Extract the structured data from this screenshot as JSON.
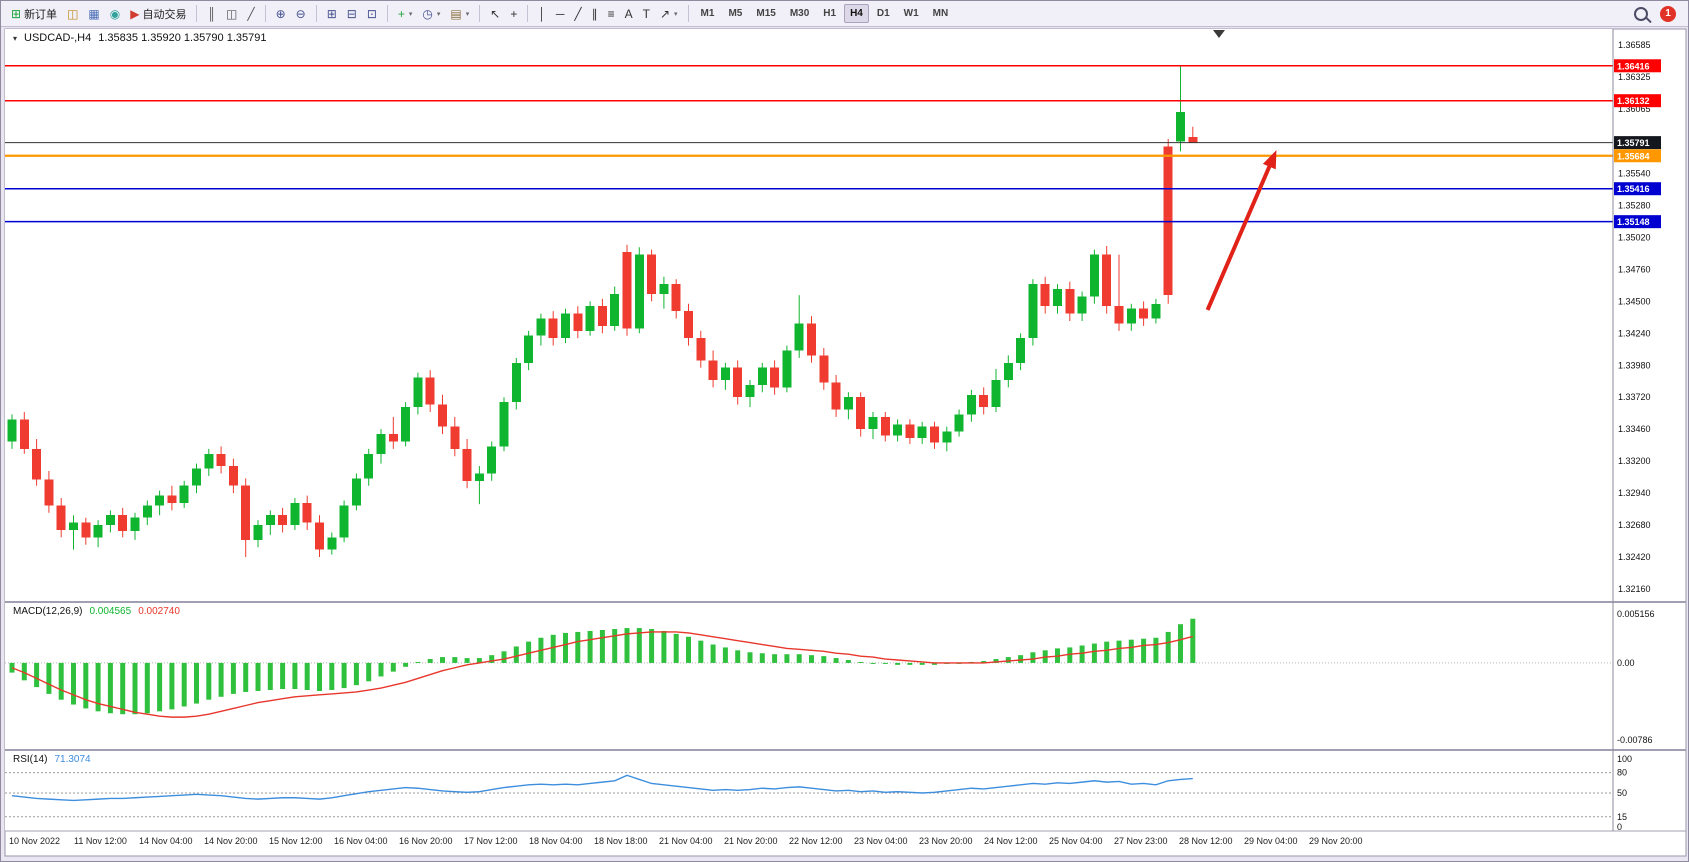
{
  "toolbar": {
    "items": [
      {
        "name": "new-order-button",
        "glyph": "⊞",
        "glyph_color": "#1fa53c",
        "label": "新订单"
      },
      {
        "name": "charts-icon-button",
        "glyph": "◫",
        "glyph_color": "#c08a1e"
      },
      {
        "name": "profiles-button",
        "glyph": "▦",
        "glyph_color": "#4a6fb5"
      },
      {
        "name": "market-watch-button",
        "glyph": "◉",
        "glyph_color": "#2fa39a"
      },
      {
        "name": "auto-trading-button",
        "glyph": "▶",
        "glyph_color": "#d23b2f",
        "label": "自动交易"
      },
      {
        "sep": true
      },
      {
        "name": "bar-chart-type-button",
        "glyph": "║",
        "glyph_color": "#555555"
      },
      {
        "name": "candlestick-type-button",
        "glyph": "◫",
        "glyph_color": "#555555"
      },
      {
        "name": "line-chart-type-button",
        "glyph": "╱",
        "glyph_color": "#555555"
      },
      {
        "sep": true
      },
      {
        "name": "zoom-in-button",
        "glyph": "⊕",
        "glyph_color": "#44518f"
      },
      {
        "name": "zoom-out-button",
        "glyph": "⊖",
        "glyph_color": "#44518f"
      },
      {
        "sep": true
      },
      {
        "name": "tile-windows-button",
        "glyph": "⊞",
        "glyph_color": "#44518f"
      },
      {
        "name": "cascade-windows-button",
        "glyph": "⊟",
        "glyph_color": "#44518f"
      },
      {
        "name": "arrange-windows-button",
        "glyph": "⊡",
        "glyph_color": "#44518f"
      },
      {
        "sep": true
      },
      {
        "name": "indicators-button",
        "glyph": "+",
        "glyph_color": "#1fa53c",
        "caret": true
      },
      {
        "name": "periods-button",
        "glyph": "◷",
        "glyph_color": "#44518f",
        "caret": true
      },
      {
        "name": "templates-button",
        "glyph": "▤",
        "glyph_color": "#8a6f3e",
        "caret": true
      },
      {
        "sep": true
      },
      {
        "name": "cursor-tool-button",
        "glyph": "↖",
        "glyph_color": "#333333"
      },
      {
        "name": "crosshair-tool-button",
        "glyph": "+",
        "glyph_color": "#333333"
      },
      {
        "sep": true
      },
      {
        "name": "vertical-line-tool-button",
        "glyph": "│",
        "glyph_color": "#333333"
      },
      {
        "name": "horizontal-line-tool-button",
        "glyph": "─",
        "glyph_color": "#333333"
      },
      {
        "name": "trendline-tool-button",
        "glyph": "╱",
        "glyph_color": "#333333"
      },
      {
        "name": "channel-tool-button",
        "glyph": "∥",
        "glyph_color": "#333333"
      },
      {
        "name": "fibonacci-tool-button",
        "glyph": "≡",
        "glyph_color": "#333333"
      },
      {
        "name": "text-tool-button",
        "glyph": "A",
        "glyph_color": "#333333"
      },
      {
        "name": "label-tool-button",
        "glyph": "T",
        "glyph_color": "#333333"
      },
      {
        "name": "arrows-tool-button",
        "glyph": "↗",
        "glyph_color": "#333333",
        "caret": true
      }
    ],
    "timeframes": [
      "M1",
      "M5",
      "M15",
      "M30",
      "H1",
      "H4",
      "D1",
      "W1",
      "MN"
    ],
    "active_timeframe": "H4",
    "notification_count": "1"
  },
  "chart_header": {
    "collapse_glyph": "▾",
    "symbol_period": "USDCAD-,H4",
    "ohlc": "1.35835 1.35920 1.35790 1.35791"
  },
  "chart_data": {
    "type": "candlestick",
    "symbol": "USDCAD-",
    "timeframe": "H4",
    "current_bar": {
      "open": 1.35835,
      "high": 1.3592,
      "low": 1.3579,
      "close": 1.35791
    },
    "colors": {
      "up": "#0FB52F",
      "down": "#EF3B30",
      "macd_hist": "#2FC13E",
      "macd_signal": "#E8372C",
      "rsi_line": "#3E8EDE",
      "current_price_line": "#333333",
      "arrow": "#E02218"
    },
    "price_axis": {
      "min": 1.3216,
      "max": 1.36585,
      "ticks": [
        "1.36585",
        "1.36325",
        "1.36065",
        "1.35540",
        "1.35280",
        "1.35020",
        "1.34760",
        "1.34500",
        "1.34240",
        "1.33980",
        "1.33720",
        "1.33460",
        "1.33200",
        "1.32940",
        "1.32680",
        "1.32420",
        "1.32160"
      ],
      "badges": [
        {
          "value": "1.36416",
          "bg": "#FF0000"
        },
        {
          "value": "1.36132",
          "bg": "#FF0000"
        },
        {
          "value": "1.35791",
          "bg": "#14181E"
        },
        {
          "value": "1.35684",
          "bg": "#FF9800"
        },
        {
          "value": "1.35416",
          "bg": "#0000D0"
        },
        {
          "value": "1.35148",
          "bg": "#0000D0"
        }
      ]
    },
    "hlines": [
      {
        "price": 1.36416,
        "color": "#FF0000",
        "width": 1.5
      },
      {
        "price": 1.36132,
        "color": "#FF0000",
        "width": 1.5
      },
      {
        "price": 1.35684,
        "color": "#FF9800",
        "width": 2.2
      },
      {
        "price": 1.35416,
        "color": "#0000D0",
        "width": 1.5
      },
      {
        "price": 1.35148,
        "color": "#0000D0",
        "width": 1.5
      }
    ],
    "current_price": {
      "value": 1.35791,
      "line_color": "#333333"
    },
    "candles": [
      [
        1.3336,
        1.3358,
        1.333,
        1.3354
      ],
      [
        1.3354,
        1.336,
        1.3326,
        1.333
      ],
      [
        1.333,
        1.3338,
        1.33,
        1.3305
      ],
      [
        1.3305,
        1.3312,
        1.3278,
        1.3284
      ],
      [
        1.3284,
        1.329,
        1.3258,
        1.3264
      ],
      [
        1.3264,
        1.3276,
        1.3248,
        1.327
      ],
      [
        1.327,
        1.3274,
        1.3252,
        1.3258
      ],
      [
        1.3258,
        1.3272,
        1.325,
        1.3268
      ],
      [
        1.3268,
        1.328,
        1.3262,
        1.3276
      ],
      [
        1.3276,
        1.3282,
        1.3258,
        1.3263
      ],
      [
        1.3263,
        1.3278,
        1.3256,
        1.3274
      ],
      [
        1.3274,
        1.3288,
        1.3268,
        1.3284
      ],
      [
        1.3284,
        1.3296,
        1.3276,
        1.3292
      ],
      [
        1.3292,
        1.33,
        1.328,
        1.3286
      ],
      [
        1.3286,
        1.3304,
        1.3282,
        1.33
      ],
      [
        1.33,
        1.3318,
        1.3294,
        1.3314
      ],
      [
        1.3314,
        1.333,
        1.3308,
        1.3326
      ],
      [
        1.3326,
        1.3332,
        1.331,
        1.3316
      ],
      [
        1.3316,
        1.3322,
        1.3294,
        1.33
      ],
      [
        1.33,
        1.3306,
        1.3242,
        1.3256
      ],
      [
        1.3256,
        1.3272,
        1.325,
        1.3268
      ],
      [
        1.3268,
        1.328,
        1.326,
        1.3276
      ],
      [
        1.3276,
        1.3282,
        1.3262,
        1.3268
      ],
      [
        1.3268,
        1.329,
        1.3264,
        1.3286
      ],
      [
        1.3286,
        1.3292,
        1.3264,
        1.327
      ],
      [
        1.327,
        1.3276,
        1.3242,
        1.3248
      ],
      [
        1.3248,
        1.3262,
        1.3244,
        1.3258
      ],
      [
        1.3258,
        1.3288,
        1.3254,
        1.3284
      ],
      [
        1.3284,
        1.331,
        1.328,
        1.3306
      ],
      [
        1.3306,
        1.333,
        1.33,
        1.3326
      ],
      [
        1.3326,
        1.3346,
        1.3318,
        1.3342
      ],
      [
        1.3342,
        1.3356,
        1.333,
        1.3336
      ],
      [
        1.3336,
        1.3368,
        1.3332,
        1.3364
      ],
      [
        1.3364,
        1.3392,
        1.3358,
        1.3388
      ],
      [
        1.3388,
        1.3394,
        1.336,
        1.3366
      ],
      [
        1.3366,
        1.3374,
        1.3342,
        1.3348
      ],
      [
        1.3348,
        1.3356,
        1.3324,
        1.333
      ],
      [
        1.333,
        1.3338,
        1.3298,
        1.3304
      ],
      [
        1.3304,
        1.3316,
        1.3285,
        1.331
      ],
      [
        1.331,
        1.3336,
        1.3304,
        1.3332
      ],
      [
        1.3332,
        1.3372,
        1.3328,
        1.3368
      ],
      [
        1.3368,
        1.3404,
        1.3362,
        1.34
      ],
      [
        1.34,
        1.3426,
        1.3394,
        1.3422
      ],
      [
        1.3422,
        1.344,
        1.3414,
        1.3436
      ],
      [
        1.3436,
        1.3442,
        1.3414,
        1.342
      ],
      [
        1.342,
        1.3444,
        1.3416,
        1.344
      ],
      [
        1.344,
        1.3446,
        1.342,
        1.3426
      ],
      [
        1.3426,
        1.345,
        1.3422,
        1.3446
      ],
      [
        1.3446,
        1.3452,
        1.3424,
        1.343
      ],
      [
        1.343,
        1.3462,
        1.3426,
        1.3456
      ],
      [
        1.349,
        1.3496,
        1.3422,
        1.3428
      ],
      [
        1.3428,
        1.3494,
        1.3424,
        1.3488
      ],
      [
        1.3488,
        1.3492,
        1.345,
        1.3456
      ],
      [
        1.3456,
        1.347,
        1.3444,
        1.3464
      ],
      [
        1.3464,
        1.3468,
        1.3436,
        1.3442
      ],
      [
        1.3442,
        1.3448,
        1.3414,
        1.342
      ],
      [
        1.342,
        1.3426,
        1.3396,
        1.3402
      ],
      [
        1.3402,
        1.341,
        1.338,
        1.3386
      ],
      [
        1.3386,
        1.34,
        1.3378,
        1.3396
      ],
      [
        1.3396,
        1.3402,
        1.3366,
        1.3372
      ],
      [
        1.3372,
        1.3386,
        1.3364,
        1.3382
      ],
      [
        1.3382,
        1.34,
        1.3376,
        1.3396
      ],
      [
        1.3396,
        1.3402,
        1.3374,
        1.338
      ],
      [
        1.338,
        1.3414,
        1.3376,
        1.341
      ],
      [
        1.341,
        1.3455,
        1.3404,
        1.3432
      ],
      [
        1.3432,
        1.3438,
        1.34,
        1.3406
      ],
      [
        1.3406,
        1.3412,
        1.3378,
        1.3384
      ],
      [
        1.3384,
        1.339,
        1.3356,
        1.3362
      ],
      [
        1.3362,
        1.3376,
        1.3354,
        1.3372
      ],
      [
        1.3372,
        1.3376,
        1.334,
        1.3346
      ],
      [
        1.3346,
        1.336,
        1.3338,
        1.3356
      ],
      [
        1.3356,
        1.336,
        1.3336,
        1.3341
      ],
      [
        1.3341,
        1.3354,
        1.3336,
        1.335
      ],
      [
        1.335,
        1.3354,
        1.3334,
        1.3339
      ],
      [
        1.3339,
        1.3352,
        1.3334,
        1.3348
      ],
      [
        1.3348,
        1.3352,
        1.333,
        1.3335
      ],
      [
        1.3335,
        1.3348,
        1.3328,
        1.3344
      ],
      [
        1.3344,
        1.3362,
        1.334,
        1.3358
      ],
      [
        1.3358,
        1.3378,
        1.3352,
        1.3374
      ],
      [
        1.3374,
        1.338,
        1.3358,
        1.3364
      ],
      [
        1.3364,
        1.3395,
        1.336,
        1.3386
      ],
      [
        1.3386,
        1.3406,
        1.338,
        1.34
      ],
      [
        1.34,
        1.3424,
        1.3394,
        1.342
      ],
      [
        1.342,
        1.3468,
        1.3414,
        1.3464
      ],
      [
        1.3464,
        1.347,
        1.344,
        1.3446
      ],
      [
        1.3446,
        1.3464,
        1.344,
        1.346
      ],
      [
        1.346,
        1.3466,
        1.3434,
        1.344
      ],
      [
        1.344,
        1.3458,
        1.3434,
        1.3454
      ],
      [
        1.3454,
        1.3492,
        1.3448,
        1.3488
      ],
      [
        1.3488,
        1.3495,
        1.344,
        1.3446
      ],
      [
        1.3446,
        1.3488,
        1.3426,
        1.3432
      ],
      [
        1.3432,
        1.3448,
        1.3426,
        1.3444
      ],
      [
        1.3444,
        1.345,
        1.343,
        1.3436
      ],
      [
        1.3436,
        1.3452,
        1.3432,
        1.3448
      ],
      [
        1.3576,
        1.3582,
        1.3448,
        1.3455
      ],
      [
        1.358,
        1.36416,
        1.3572,
        1.3604
      ],
      [
        1.35835,
        1.3592,
        1.3579,
        1.35791
      ]
    ],
    "time_labels": [
      "10 Nov 2022",
      "11 Nov 12:00",
      "14 Nov 04:00",
      "14 Nov 20:00",
      "15 Nov 12:00",
      "16 Nov 04:00",
      "16 Nov 20:00",
      "17 Nov 12:00",
      "18 Nov 04:00",
      "18 Nov 18:00",
      "21 Nov 04:00",
      "21 Nov 20:00",
      "22 Nov 12:00",
      "23 Nov 04:00",
      "23 Nov 20:00",
      "24 Nov 12:00",
      "25 Nov 04:00",
      "27 Nov 23:00",
      "28 Nov 12:00",
      "29 Nov 04:00",
      "29 Nov 20:00"
    ],
    "macd": {
      "label": "MACD(12,26,9)",
      "value_hist": "0.004565",
      "value_signal": "0.002740",
      "scale_max": 0.005156,
      "scale_min": -0.00786,
      "scale_labels": {
        "top": "0.005156",
        "zero": "0.00",
        "bottom": "-0.00786"
      },
      "hist": [
        -0.001,
        -0.0018,
        -0.0025,
        -0.0032,
        -0.0038,
        -0.0043,
        -0.0047,
        -0.005,
        -0.0052,
        -0.0053,
        -0.0053,
        -0.0052,
        -0.005,
        -0.0048,
        -0.0045,
        -0.0042,
        -0.0038,
        -0.0035,
        -0.0032,
        -0.003,
        -0.0029,
        -0.0028,
        -0.0027,
        -0.0027,
        -0.0028,
        -0.0029,
        -0.0028,
        -0.0026,
        -0.0023,
        -0.0019,
        -0.0014,
        -0.0009,
        -0.0004,
        0.0001,
        0.0004,
        0.0006,
        0.0006,
        0.0005,
        0.0005,
        0.0008,
        0.0012,
        0.0017,
        0.0022,
        0.0026,
        0.0029,
        0.0031,
        0.0032,
        0.0033,
        0.0034,
        0.0035,
        0.0036,
        0.0036,
        0.0035,
        0.0033,
        0.003,
        0.0027,
        0.0023,
        0.0019,
        0.0016,
        0.0013,
        0.0011,
        0.001,
        0.0009,
        0.0009,
        0.0009,
        0.0008,
        0.0007,
        0.0005,
        0.0003,
        0.0001,
        0.0,
        -0.0001,
        -0.0002,
        -0.0002,
        -0.0002,
        -0.0002,
        -0.0001,
        0.0,
        0.0001,
        0.0002,
        0.0004,
        0.0006,
        0.0008,
        0.0011,
        0.0013,
        0.0015,
        0.0016,
        0.0018,
        0.002,
        0.0022,
        0.0023,
        0.0024,
        0.0025,
        0.0026,
        0.0032,
        0.004,
        0.004565
      ],
      "signal": [
        -0.0005,
        -0.001,
        -0.0016,
        -0.0022,
        -0.0028,
        -0.0033,
        -0.0038,
        -0.0042,
        -0.0045,
        -0.0048,
        -0.0051,
        -0.0053,
        -0.0055,
        -0.0056,
        -0.0056,
        -0.0055,
        -0.0053,
        -0.005,
        -0.0047,
        -0.0044,
        -0.0041,
        -0.0039,
        -0.0037,
        -0.0035,
        -0.0034,
        -0.0033,
        -0.0032,
        -0.0031,
        -0.003,
        -0.0028,
        -0.0026,
        -0.0023,
        -0.002,
        -0.0016,
        -0.0012,
        -0.0008,
        -0.0005,
        -0.0002,
        0.0,
        0.0002,
        0.0004,
        0.0007,
        0.001,
        0.0013,
        0.0016,
        0.0019,
        0.0022,
        0.0024,
        0.0026,
        0.0028,
        0.003,
        0.0031,
        0.0032,
        0.0032,
        0.0032,
        0.0031,
        0.0029,
        0.0027,
        0.0025,
        0.0023,
        0.0021,
        0.0019,
        0.0017,
        0.0015,
        0.0014,
        0.0013,
        0.0012,
        0.001,
        0.0009,
        0.0007,
        0.0006,
        0.0004,
        0.0003,
        0.0002,
        0.0001,
        0.0,
        0.0,
        0.0,
        0.0,
        0.0,
        0.0001,
        0.0002,
        0.0003,
        0.0004,
        0.0006,
        0.0007,
        0.0009,
        0.001,
        0.0012,
        0.0013,
        0.0015,
        0.0016,
        0.0018,
        0.0019,
        0.0021,
        0.0024,
        0.00274
      ]
    },
    "rsi": {
      "label": "RSI(14)",
      "value": "71.3074",
      "levels": [
        80,
        50,
        15
      ],
      "scale_labels": [
        [
          "100",
          100
        ],
        [
          "80",
          80
        ],
        [
          "50",
          50
        ],
        [
          "15",
          15
        ],
        [
          "0",
          0
        ]
      ],
      "series": [
        46,
        44,
        42,
        41,
        40,
        39,
        40,
        41,
        42,
        42,
        43,
        44,
        45,
        46,
        47,
        48,
        47,
        46,
        44,
        42,
        41,
        42,
        43,
        43,
        42,
        41,
        43,
        46,
        49,
        52,
        54,
        56,
        58,
        57,
        55,
        53,
        52,
        51,
        52,
        55,
        58,
        60,
        62,
        63,
        62,
        63,
        62,
        64,
        66,
        68,
        76,
        70,
        64,
        62,
        60,
        58,
        56,
        54,
        55,
        54,
        55,
        57,
        56,
        58,
        59,
        57,
        55,
        53,
        54,
        52,
        53,
        51,
        52,
        51,
        50,
        51,
        53,
        55,
        57,
        56,
        58,
        60,
        62,
        64,
        63,
        65,
        64,
        66,
        68,
        66,
        67,
        63,
        64,
        62,
        68,
        70,
        71.3074
      ]
    },
    "arrow": {
      "from": {
        "index": 97.2,
        "price": 1.3443
      },
      "to": {
        "index": 102.8,
        "price": 1.3573
      },
      "color": "#E02218"
    }
  }
}
